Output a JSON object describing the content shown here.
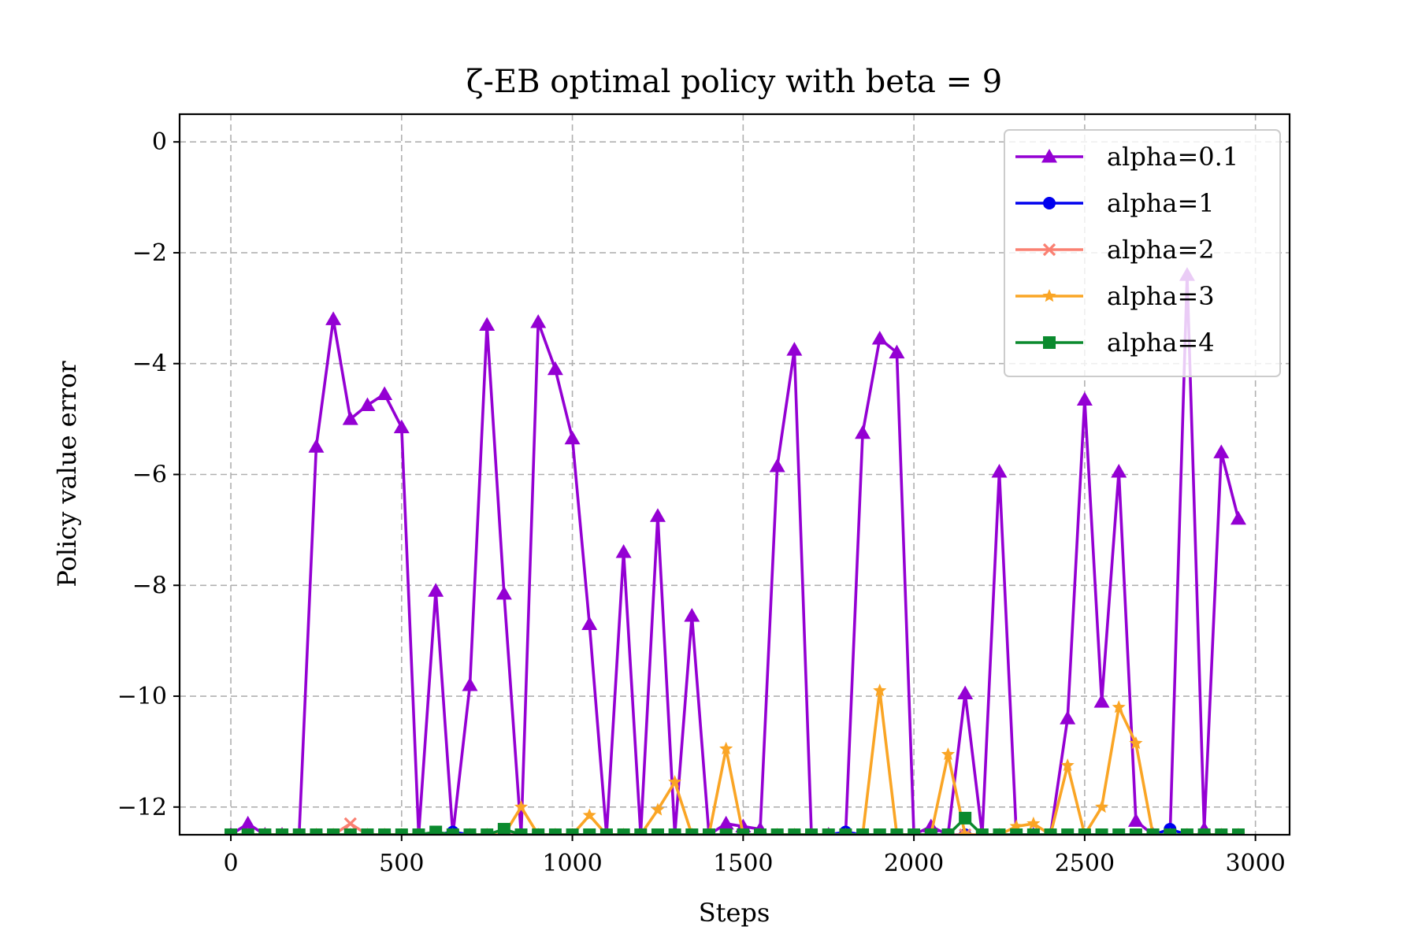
{
  "chart_data": {
    "type": "line",
    "title": "ζ-EB optimal policy with beta = 9",
    "xlabel": "Steps",
    "ylabel": "Policy value error",
    "xlim": [
      -150,
      3100
    ],
    "ylim": [
      -12.5,
      0.5
    ],
    "xticks": [
      0,
      500,
      1000,
      1500,
      2000,
      2500,
      3000
    ],
    "xtick_labels": [
      "0",
      "500",
      "1000",
      "1500",
      "2000",
      "2500",
      "3000"
    ],
    "yticks": [
      0,
      -2,
      -4,
      -6,
      -8,
      -10,
      -12
    ],
    "ytick_labels": [
      "0",
      "−2",
      "−4",
      "−6",
      "−8",
      "−10",
      "−12"
    ],
    "grid": true,
    "legend_position": "top-right",
    "x": [
      0,
      50,
      100,
      150,
      200,
      250,
      300,
      350,
      400,
      450,
      500,
      550,
      600,
      650,
      700,
      750,
      800,
      850,
      900,
      950,
      1000,
      1050,
      1100,
      1150,
      1200,
      1250,
      1300,
      1350,
      1400,
      1450,
      1500,
      1550,
      1600,
      1650,
      1700,
      1750,
      1800,
      1850,
      1900,
      1950,
      2000,
      2050,
      2100,
      2150,
      2200,
      2250,
      2300,
      2350,
      2400,
      2450,
      2500,
      2550,
      2600,
      2650,
      2700,
      2750,
      2800,
      2850,
      2900,
      2950
    ],
    "series": [
      {
        "name": "alpha=0.1",
        "color": "#9400D3",
        "marker": "triangle",
        "values": [
          -12.5,
          -12.3,
          -12.5,
          -12.5,
          -12.5,
          -5.5,
          -3.2,
          -5.0,
          -4.75,
          -4.55,
          -5.15,
          -12.5,
          -8.1,
          -12.5,
          -9.8,
          -3.3,
          -8.15,
          -12.5,
          -3.25,
          -4.1,
          -5.35,
          -8.7,
          -12.5,
          -7.4,
          -12.5,
          -6.75,
          -12.5,
          -8.55,
          -12.5,
          -12.3,
          -12.35,
          -12.4,
          -5.85,
          -3.75,
          -12.5,
          -12.5,
          -12.5,
          -5.25,
          -3.55,
          -3.8,
          -12.5,
          -12.35,
          -12.5,
          -9.95,
          -12.5,
          -5.95,
          -12.5,
          -12.5,
          -12.5,
          -10.4,
          -4.65,
          -10.1,
          -5.95,
          -12.25,
          -12.5,
          -12.5,
          -2.4,
          -12.4,
          -5.6,
          -6.8
        ]
      },
      {
        "name": "alpha=1",
        "color": "#0000EE",
        "marker": "circle",
        "values": [
          -12.5,
          -12.5,
          -12.5,
          -12.5,
          -12.5,
          -12.5,
          -12.5,
          -12.5,
          -12.5,
          -12.5,
          -12.5,
          -12.5,
          -12.5,
          -12.45,
          -12.5,
          -12.5,
          -12.5,
          -12.5,
          -12.5,
          -12.5,
          -12.5,
          -12.5,
          -12.5,
          -12.5,
          -12.5,
          -12.5,
          -12.5,
          -12.5,
          -12.5,
          -12.5,
          -12.5,
          -12.5,
          -12.5,
          -12.5,
          -12.5,
          -12.5,
          -12.45,
          -12.5,
          -12.5,
          -12.5,
          -12.5,
          -12.5,
          -12.5,
          -12.5,
          -12.5,
          -12.5,
          -12.5,
          -12.5,
          -12.5,
          -12.5,
          -12.5,
          -12.5,
          -12.5,
          -12.5,
          -12.5,
          -12.4,
          -12.5,
          -12.5,
          -12.5,
          -12.5
        ]
      },
      {
        "name": "alpha=2",
        "color": "#FA8072",
        "marker": "x",
        "values": [
          -12.5,
          -12.5,
          -12.5,
          -12.5,
          -12.5,
          -12.5,
          -12.5,
          -12.3,
          -12.5,
          -12.5,
          -12.5,
          -12.5,
          -12.5,
          -12.5,
          -12.5,
          -12.5,
          -12.5,
          -12.5,
          -12.5,
          -12.5,
          -12.5,
          -12.5,
          -12.5,
          -12.5,
          -12.5,
          -12.5,
          -12.5,
          -12.5,
          -12.5,
          -12.5,
          -12.5,
          -12.5,
          -12.5,
          -12.5,
          -12.5,
          -12.5,
          -12.5,
          -12.5,
          -12.5,
          -12.5,
          -12.5,
          -12.5,
          -12.5,
          -12.5,
          -12.5,
          -12.5,
          -12.5,
          -12.5,
          -12.5,
          -12.5,
          -12.5,
          -12.5,
          -12.5,
          -12.5,
          -12.5,
          -12.5,
          -12.5,
          -12.5,
          -12.5,
          -12.5
        ]
      },
      {
        "name": "alpha=3",
        "color": "#FAA525",
        "marker": "star",
        "values": [
          -12.5,
          -12.5,
          -12.5,
          -12.5,
          -12.5,
          -12.5,
          -12.5,
          -12.5,
          -12.5,
          -12.5,
          -12.5,
          -12.5,
          -12.5,
          -12.5,
          -12.5,
          -12.5,
          -12.5,
          -12.0,
          -12.5,
          -12.5,
          -12.5,
          -12.15,
          -12.5,
          -12.5,
          -12.5,
          -12.05,
          -11.55,
          -12.5,
          -12.5,
          -10.95,
          -12.5,
          -12.5,
          -12.5,
          -12.5,
          -12.5,
          -12.5,
          -12.5,
          -12.5,
          -9.9,
          -12.5,
          -12.5,
          -12.5,
          -11.05,
          -12.5,
          -12.5,
          -12.5,
          -12.35,
          -12.3,
          -12.5,
          -11.25,
          -12.5,
          -12.0,
          -10.2,
          -10.85,
          -12.5,
          -12.5,
          -12.5,
          -12.5,
          -12.5,
          -12.5
        ]
      },
      {
        "name": "alpha=4",
        "color": "#0B8A2E",
        "marker": "square",
        "values": [
          -12.5,
          -12.5,
          -12.5,
          -12.5,
          -12.5,
          -12.5,
          -12.5,
          -12.5,
          -12.5,
          -12.5,
          -12.5,
          -12.5,
          -12.45,
          -12.5,
          -12.5,
          -12.5,
          -12.4,
          -12.5,
          -12.5,
          -12.5,
          -12.5,
          -12.5,
          -12.5,
          -12.5,
          -12.5,
          -12.5,
          -12.5,
          -12.5,
          -12.5,
          -12.5,
          -12.5,
          -12.5,
          -12.5,
          -12.5,
          -12.5,
          -12.5,
          -12.5,
          -12.5,
          -12.5,
          -12.5,
          -12.5,
          -12.5,
          -12.5,
          -12.2,
          -12.5,
          -12.5,
          -12.5,
          -12.5,
          -12.5,
          -12.5,
          -12.5,
          -12.5,
          -12.5,
          -12.5,
          -12.5,
          -12.5,
          -12.5,
          -12.5,
          -12.5,
          -12.5
        ]
      }
    ]
  }
}
